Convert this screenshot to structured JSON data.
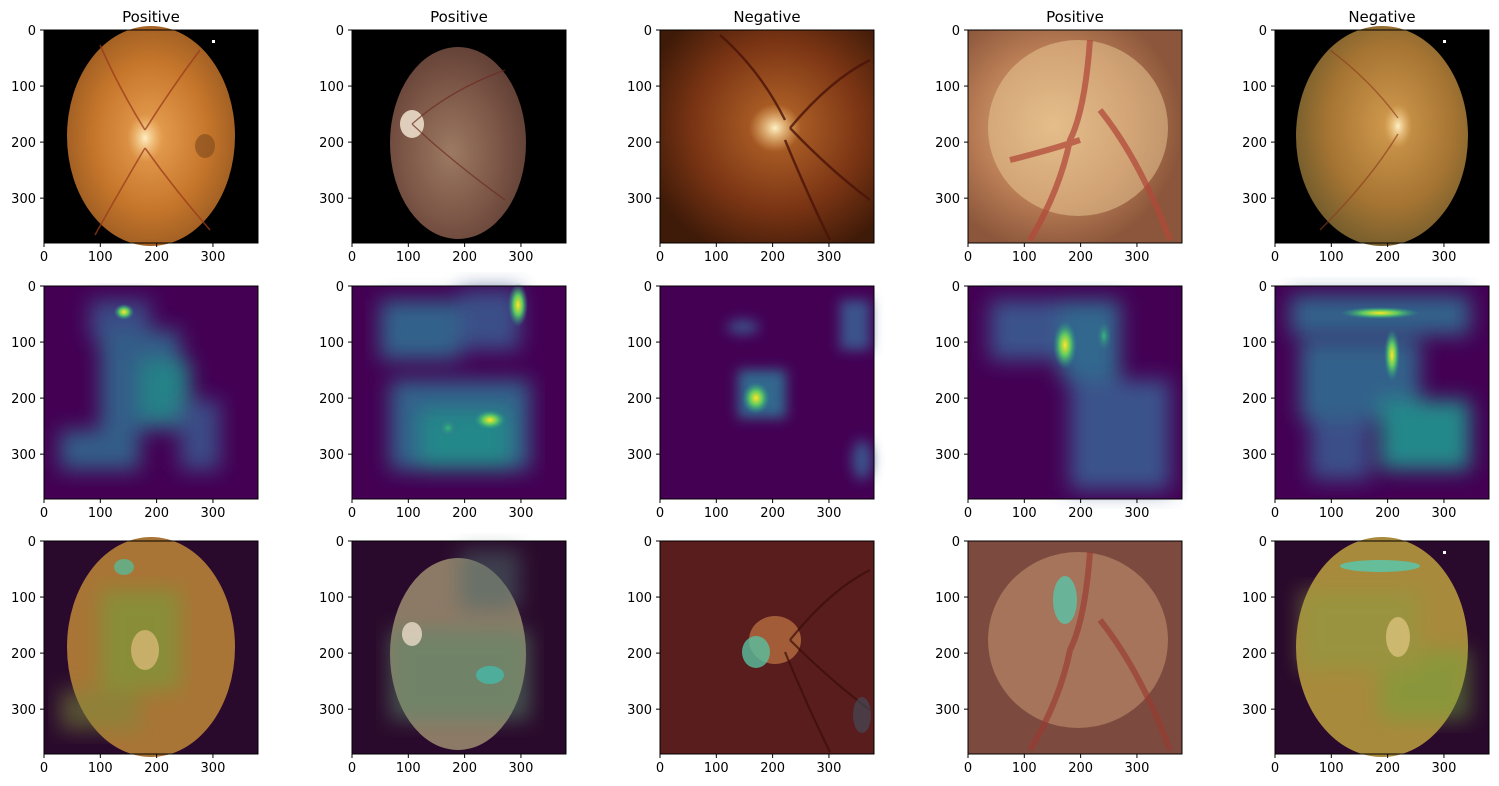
{
  "titles": [
    "Positive",
    "Positive",
    "Negative",
    "Positive",
    "Negative"
  ],
  "axes": {
    "x_ticks": [
      0,
      100,
      200,
      300
    ],
    "y_ticks": [
      0,
      100,
      200,
      300
    ],
    "range": [
      0,
      380
    ]
  },
  "rows": [
    "fundus-image",
    "activation-heatmap",
    "heatmap-overlay"
  ],
  "colors": {
    "heatmap_low": "#440154",
    "heatmap_mid": "#21908d",
    "heatmap_high": "#fde725"
  }
}
